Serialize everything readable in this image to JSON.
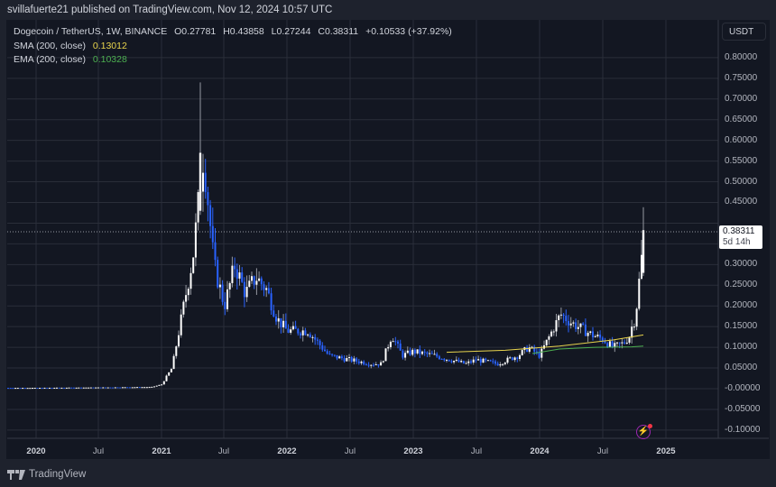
{
  "header": {
    "published": "svillafuerte21 published on TradingView.com, Nov 12, 2024 10:57 UTC"
  },
  "legend": {
    "symbol": "Dogecoin / TetherUS, 1W, BINANCE",
    "open": "O0.27781",
    "high": "H0.43858",
    "low": "L0.27244",
    "close": "C0.38311",
    "change": "+0.10533 (+37.92%)",
    "sma_label": "SMA (200, close)",
    "sma_value": "0.13012",
    "ema_label": "EMA (200, close)",
    "ema_value": "0.10328"
  },
  "price_axis": {
    "currency": "USDT",
    "last_price": "0.38311",
    "countdown": "5d 14h"
  },
  "footer": {
    "brand": "TradingView"
  },
  "colors": {
    "background": "#131722",
    "up_candle": "#ffffff",
    "down_candle": "#2962ff",
    "sma": "#e8d44d",
    "ema": "#4caf50",
    "grid": "#2a2e39"
  },
  "chart_data": {
    "type": "candlestick",
    "title": "Dogecoin / TetherUS, 1W, BINANCE",
    "xlabel": "",
    "ylabel": "USDT",
    "ylim": [
      -0.1,
      0.8
    ],
    "grid": true,
    "legend_position": "top-left",
    "y_ticks": [
      "0.80000",
      "0.75000",
      "0.70000",
      "0.65000",
      "0.60000",
      "0.55000",
      "0.50000",
      "0.45000",
      "0.40000",
      "0.35000",
      "0.30000",
      "0.25000",
      "0.20000",
      "0.15000",
      "0.10000",
      "0.05000",
      "-0.00000",
      "-0.05000",
      "-0.10000"
    ],
    "x_ticks": [
      "2020",
      "Jul",
      "2021",
      "Jul",
      "2022",
      "Jul",
      "2023",
      "Jul",
      "2024",
      "Jul",
      "2025"
    ],
    "series": [
      {
        "name": "DOGE/USDT price (approx. weekly close)",
        "x": [
          "2020-01",
          "2020-07",
          "2020-12",
          "2021-01",
          "2021-02",
          "2021-04",
          "2021-05",
          "2021-06",
          "2021-07",
          "2021-08",
          "2021-09",
          "2021-10",
          "2021-11",
          "2021-12",
          "2022-01",
          "2022-03",
          "2022-05",
          "2022-07",
          "2022-09",
          "2022-10",
          "2022-11",
          "2022-12",
          "2023-01",
          "2023-03",
          "2023-06",
          "2023-07",
          "2023-09",
          "2023-11",
          "2023-12",
          "2024-01",
          "2024-03",
          "2024-04",
          "2024-06",
          "2024-07",
          "2024-08",
          "2024-09",
          "2024-10",
          "2024-11"
        ],
        "values": [
          0.002,
          0.003,
          0.004,
          0.01,
          0.05,
          0.32,
          0.57,
          0.3,
          0.2,
          0.3,
          0.23,
          0.27,
          0.24,
          0.17,
          0.14,
          0.14,
          0.08,
          0.07,
          0.06,
          0.06,
          0.13,
          0.08,
          0.09,
          0.08,
          0.06,
          0.07,
          0.06,
          0.08,
          0.1,
          0.08,
          0.18,
          0.16,
          0.13,
          0.12,
          0.1,
          0.11,
          0.14,
          0.383
        ]
      },
      {
        "name": "SMA (200, close)",
        "last": 0.13012
      },
      {
        "name": "EMA (200, close)",
        "last": 0.10328
      }
    ],
    "last": {
      "open": 0.27781,
      "high": 0.43858,
      "low": 0.27244,
      "close": 0.38311,
      "change": 0.10533,
      "change_pct": 37.92
    },
    "annotations": [
      "0.38311 last price",
      "5d 14h to bar close"
    ]
  }
}
